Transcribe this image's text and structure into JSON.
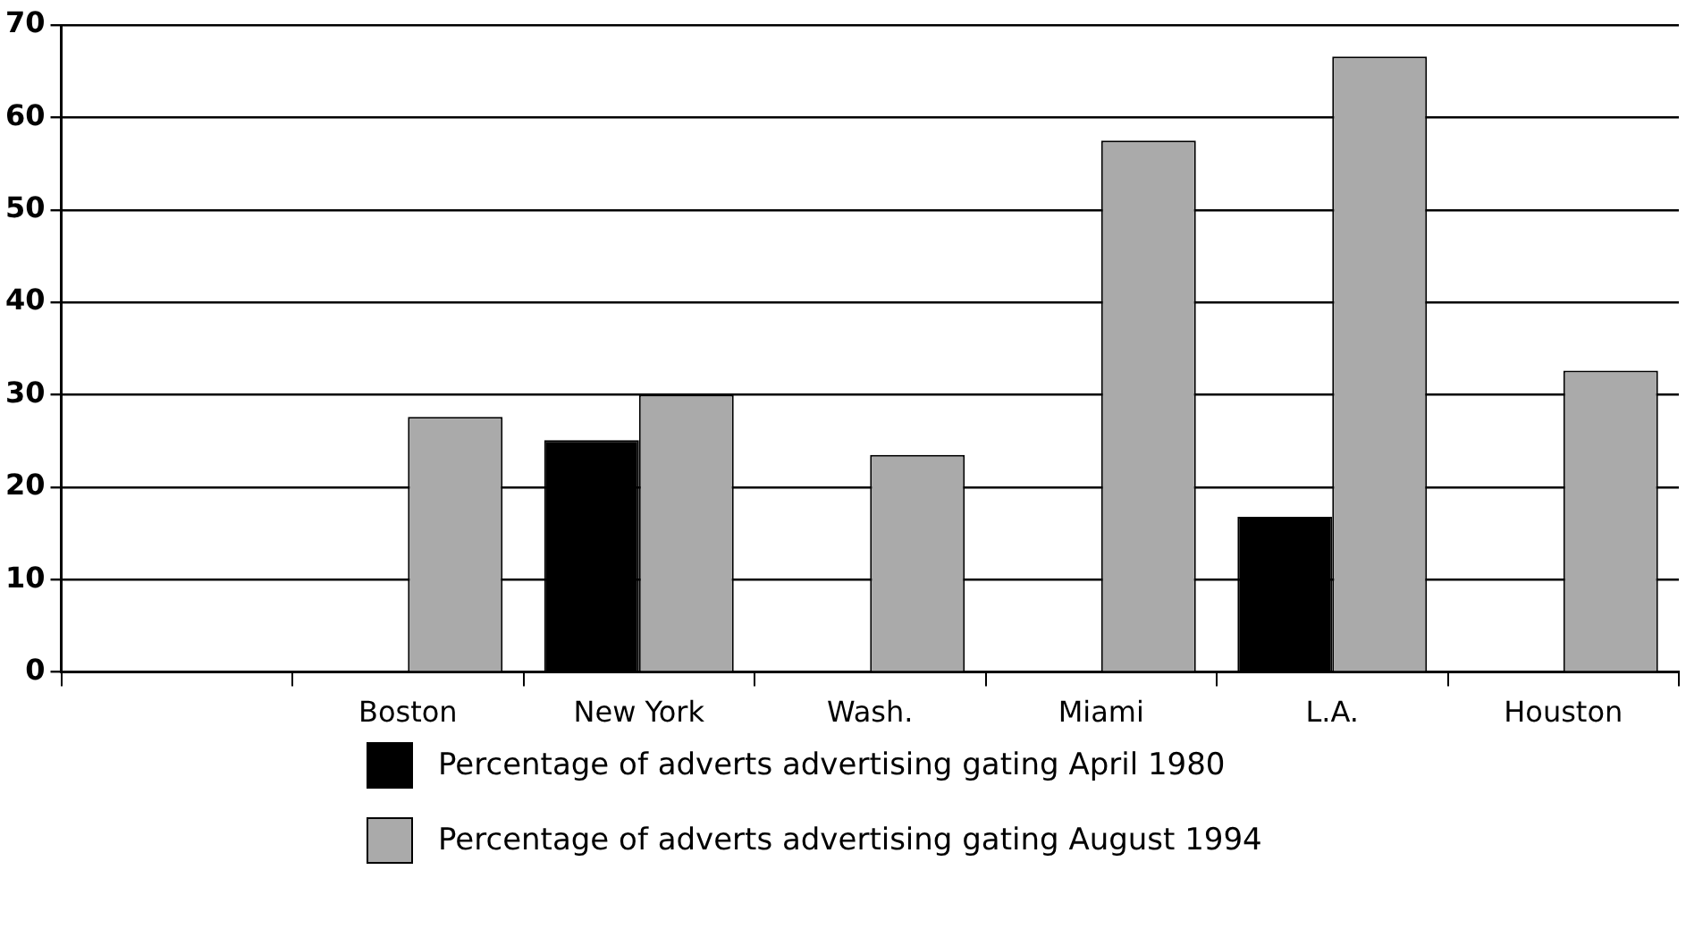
{
  "chart_data": {
    "type": "bar",
    "categories": [
      null,
      "Boston",
      "New York",
      "Wash.",
      "Miami",
      "L.A.",
      "Houston"
    ],
    "series": [
      {
        "name": "Percentage of adverts advertising gating April 1980",
        "color": "#000000",
        "values": [
          null,
          null,
          25.1,
          null,
          null,
          16.8,
          null
        ]
      },
      {
        "name": "Percentage of adverts advertising gating August 1994",
        "color": "#aaaaaa",
        "values": [
          null,
          27.6,
          30,
          23.5,
          57.5,
          66.6,
          32.6
        ]
      }
    ],
    "ylim": [
      0,
      70
    ],
    "yticks": [
      0,
      10,
      20,
      30,
      40,
      50,
      60,
      70
    ],
    "grid": "y",
    "legend": "bottom"
  }
}
